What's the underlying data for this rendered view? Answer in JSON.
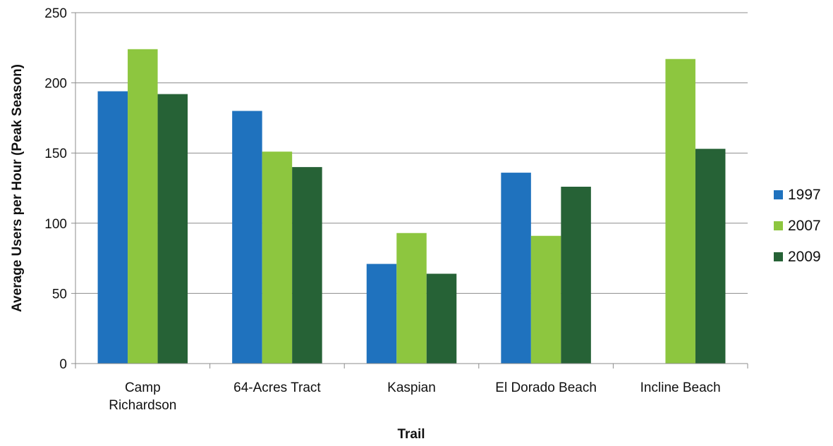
{
  "chart_data": {
    "type": "bar",
    "title": "",
    "xlabel": "Trail",
    "ylabel": "Average Users per Hour (Peak Season)",
    "ylim": [
      0,
      250
    ],
    "yticks": [
      0,
      50,
      100,
      150,
      200,
      250
    ],
    "grid": "horizontal",
    "legend_position": "right",
    "categories": [
      [
        "Camp",
        "Richardson"
      ],
      [
        "64-Acres Tract"
      ],
      [
        "Kaspian"
      ],
      [
        "El Dorado Beach"
      ],
      [
        "Incline Beach"
      ]
    ],
    "series": [
      {
        "name": "1997",
        "color": "#1f72be",
        "values": [
          194,
          180,
          71,
          136,
          null
        ]
      },
      {
        "name": "2007",
        "color": "#8dc63f",
        "values": [
          224,
          151,
          93,
          91,
          217
        ]
      },
      {
        "name": "2009",
        "color": "#266236",
        "values": [
          192,
          140,
          64,
          126,
          153
        ]
      }
    ]
  }
}
